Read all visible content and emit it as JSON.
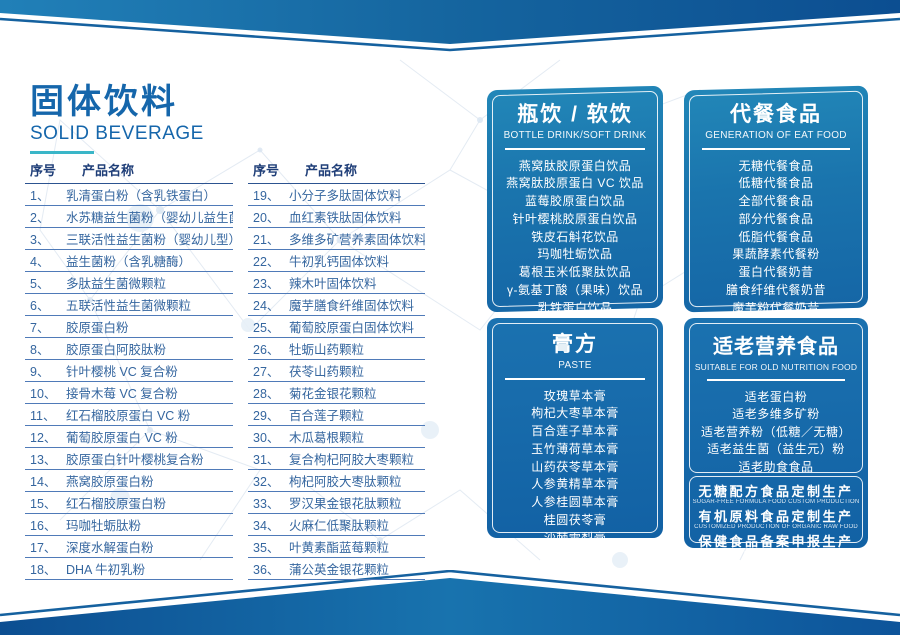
{
  "page_title": {
    "cn": "固体饮料",
    "en": "SOLID BEVERAGE"
  },
  "list": {
    "headers": {
      "no": "序号",
      "name": "产品名称"
    },
    "col_a": [
      {
        "no": "1、",
        "name": "乳清蛋白粉（含乳铁蛋白）"
      },
      {
        "no": "2、",
        "name": "水苏糖益生菌粉（婴幼儿益生菌）"
      },
      {
        "no": "3、",
        "name": "三联活性益生菌粉（婴幼儿型）"
      },
      {
        "no": "4、",
        "name": "益生菌粉（含乳糖酶）"
      },
      {
        "no": "5、",
        "name": "多肽益生菌微颗粒"
      },
      {
        "no": "6、",
        "name": "五联活性益生菌微颗粒"
      },
      {
        "no": "7、",
        "name": "胶原蛋白粉"
      },
      {
        "no": "8、",
        "name": "胶原蛋白阿胶肽粉"
      },
      {
        "no": "9、",
        "name": "针叶樱桃 VC 复合粉"
      },
      {
        "no": "10、",
        "name": "接骨木莓 VC 复合粉"
      },
      {
        "no": "11、",
        "name": "红石榴胶原蛋白 VC 粉"
      },
      {
        "no": "12、",
        "name": "葡萄胶原蛋白 VC 粉"
      },
      {
        "no": "13、",
        "name": "胶原蛋白针叶樱桃复合粉"
      },
      {
        "no": "14、",
        "name": "燕窝胶原蛋白粉"
      },
      {
        "no": "15、",
        "name": "红石榴胶原蛋白粉"
      },
      {
        "no": "16、",
        "name": "玛咖牡蛎肽粉"
      },
      {
        "no": "17、",
        "name": "深度水解蛋白粉"
      },
      {
        "no": "18、",
        "name": "DHA 牛初乳粉"
      }
    ],
    "col_b": [
      {
        "no": "19、",
        "name": "小分子多肽固体饮料"
      },
      {
        "no": "20、",
        "name": "血红素铁肽固体饮料"
      },
      {
        "no": "21、",
        "name": "多维多矿营养素固体饮料"
      },
      {
        "no": "22、",
        "name": "牛初乳钙固体饮料"
      },
      {
        "no": "23、",
        "name": "辣木叶固体饮料"
      },
      {
        "no": "24、",
        "name": "魔芋膳食纤维固体饮料"
      },
      {
        "no": "25、",
        "name": "葡萄胶原蛋白固体饮料"
      },
      {
        "no": "26、",
        "name": "牡蛎山药颗粒"
      },
      {
        "no": "27、",
        "name": "茯苓山药颗粒"
      },
      {
        "no": "28、",
        "name": "菊花金银花颗粒"
      },
      {
        "no": "29、",
        "name": "百合莲子颗粒"
      },
      {
        "no": "30、",
        "name": "木瓜葛根颗粒"
      },
      {
        "no": "31、",
        "name": "复合枸杞阿胶大枣颗粒"
      },
      {
        "no": "32、",
        "name": "枸杞阿胶大枣肽颗粒"
      },
      {
        "no": "33、",
        "name": "罗汉果金银花肽颗粒"
      },
      {
        "no": "34、",
        "name": "火麻仁低聚肽颗粒"
      },
      {
        "no": "35、",
        "name": "叶黄素酯蓝莓颗粒"
      },
      {
        "no": "36、",
        "name": "蒲公英金银花颗粒"
      }
    ]
  },
  "panels": {
    "bottle": {
      "title": "瓶饮 / 软饮",
      "subtitle": "BOTTLE DRINK/SOFT DRINK",
      "items": [
        "燕窝肽胶原蛋白饮品",
        "燕窝肽胶原蛋白 VC 饮品",
        "蓝莓胶原蛋白饮品",
        "针叶樱桃胶原蛋白饮品",
        "铁皮石斛花饮品",
        "玛咖牡蛎饮品",
        "葛根玉米低聚肽饮品",
        "γ-氨基丁酸（果味）饮品",
        "乳铁蛋白饮品"
      ]
    },
    "meal": {
      "title": "代餐食品",
      "subtitle": "GENERATION OF EAT FOOD",
      "items": [
        "无糖代餐食品",
        "低糖代餐食品",
        "全部代餐食品",
        "部分代餐食品",
        "低脂代餐食品",
        "果蔬酵素代餐粉",
        "蛋白代餐奶昔",
        "膳食纤维代餐奶昔",
        "魔芋粉代餐奶昔"
      ]
    },
    "paste": {
      "title": "膏方",
      "subtitle": "PASTE",
      "items": [
        "玫瑰草本膏",
        "枸杞大枣草本膏",
        "百合莲子草本膏",
        "玉竹薄荷草本膏",
        "山药茯苓草本膏",
        "人参黄精草本膏",
        "人参桂圆草本膏",
        "桂圆茯苓膏",
        "沙棘雪梨膏"
      ]
    },
    "elder": {
      "title": "适老营养食品",
      "subtitle": "SUITABLE FOR OLD NUTRITION FOOD",
      "items": [
        "适老蛋白粉",
        "适老多维多矿粉",
        "适老营养粉（低糖／无糖）",
        "适老益生菌（益生元）粉",
        "适老助食食品"
      ],
      "certifications": [
        {
          "cn": "无糖配方食品定制生产",
          "en": "SUGAR-FREE FORMULA FOOD CUSTOM PRODUCTION"
        },
        {
          "cn": "有机原料食品定制生产",
          "en": "CUSTOMIZED PRODUCTION OF ORGANIC RAW FOOD"
        },
        {
          "cn": "保健食品备案申报生产",
          "en": "HEALTH FOOD PRODUCTION DECLARATION"
        }
      ]
    }
  },
  "colors": {
    "brand_blue": "#1566ab",
    "accent_teal": "#3ab6c8",
    "header_navy": "#1f3e78",
    "row_text": "#35669f",
    "row_line": "#4f7ab8",
    "panel_teal_top": "#2287b8",
    "panel_blue_deep": "#1261a4",
    "band_light": "#2180b8",
    "band_dark": "#0c4e91",
    "white": "#ffffff"
  }
}
